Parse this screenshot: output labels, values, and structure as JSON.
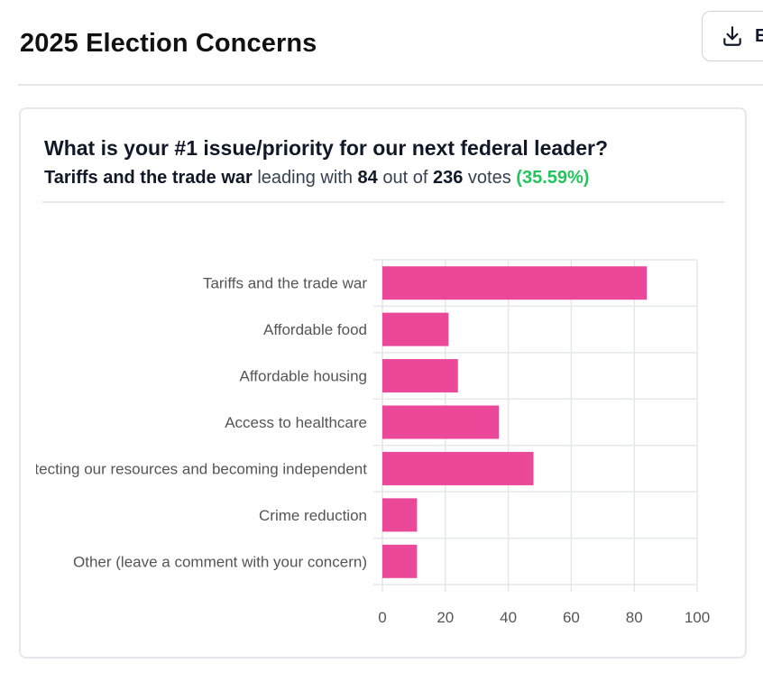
{
  "header": {
    "title": "2025 Election Concerns",
    "export_label": "E"
  },
  "poll": {
    "question": "What is your #1 issue/priority for our next federal leader?",
    "leader_option": "Tariffs and the trade war",
    "leading_with_text": "leading with",
    "leader_votes": "84",
    "out_of_text": "out of",
    "total_votes": "236",
    "votes_text": "votes",
    "leader_percent": "(35.59%)"
  },
  "colors": {
    "bar": "#ec4899",
    "percent": "#22c55e",
    "grid": "#e5e7eb"
  },
  "chart_data": {
    "type": "bar",
    "orientation": "horizontal",
    "categories": [
      "Tariffs and the trade war",
      "Affordable food",
      "Affordable housing",
      "Access to healthcare",
      "Protecting our resources and becoming independent",
      "Crime reduction",
      "Other (leave a comment with your concern)"
    ],
    "values": [
      84,
      21,
      24,
      37,
      48,
      11,
      11
    ],
    "xlim": [
      0,
      100
    ],
    "xticks": [
      0,
      20,
      40,
      60,
      80,
      100
    ],
    "grid": true,
    "legend": "none",
    "title": "",
    "xlabel": "",
    "ylabel": ""
  }
}
